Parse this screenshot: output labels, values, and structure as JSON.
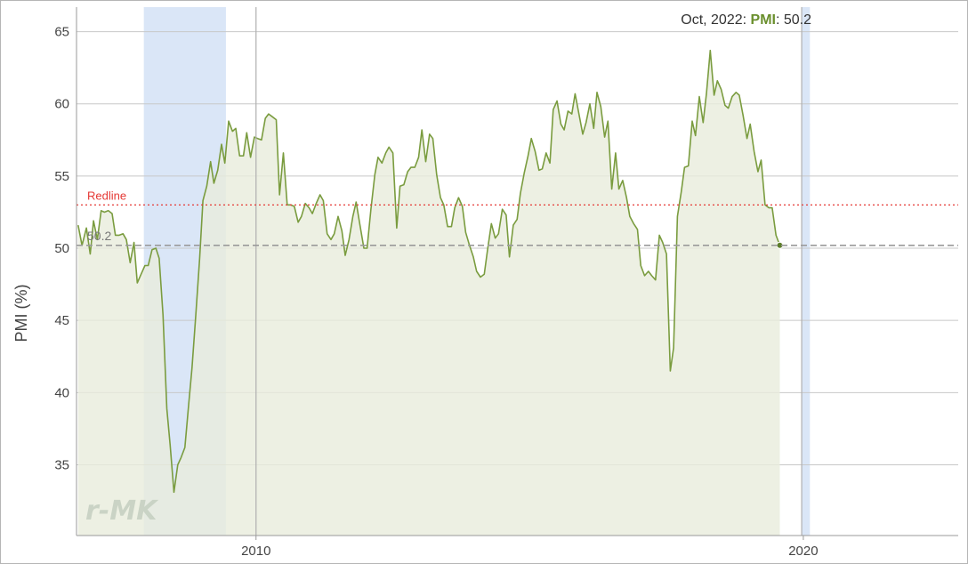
{
  "chart_data": {
    "type": "area",
    "ylabel": "PMI (%)",
    "x_ticks": [
      {
        "year": 2010,
        "label": "2010"
      },
      {
        "year": 2020,
        "label": "2020"
      }
    ],
    "xlim": [
      2006.72,
      2022.83
    ],
    "y_ticks": [
      35,
      40,
      45,
      50,
      55,
      60,
      65
    ],
    "ylim": [
      30.1,
      66.7
    ],
    "grid": true,
    "series": [
      {
        "name": "PMI",
        "color": "#7a9c3f",
        "fill": "#e8ecdc",
        "points": [
          [
            2006.75,
            51.6
          ],
          [
            2006.82,
            50.2
          ],
          [
            2006.9,
            51.4
          ],
          [
            2006.97,
            49.6
          ],
          [
            2007.03,
            51.9
          ],
          [
            2007.1,
            50.6
          ],
          [
            2007.17,
            52.6
          ],
          [
            2007.23,
            52.5
          ],
          [
            2007.3,
            52.6
          ],
          [
            2007.37,
            52.4
          ],
          [
            2007.43,
            50.9
          ],
          [
            2007.5,
            50.9
          ],
          [
            2007.57,
            51.0
          ],
          [
            2007.63,
            50.6
          ],
          [
            2007.7,
            49.0
          ],
          [
            2007.77,
            50.4
          ],
          [
            2007.83,
            47.6
          ],
          [
            2007.9,
            48.2
          ],
          [
            2007.97,
            48.8
          ],
          [
            2008.03,
            48.8
          ],
          [
            2008.1,
            49.9
          ],
          [
            2008.17,
            50.0
          ],
          [
            2008.23,
            49.3
          ],
          [
            2008.3,
            45.4
          ],
          [
            2008.37,
            38.9
          ],
          [
            2008.43,
            36.4
          ],
          [
            2008.5,
            33.1
          ],
          [
            2008.57,
            35.0
          ],
          [
            2008.63,
            35.5
          ],
          [
            2008.7,
            36.2
          ],
          [
            2008.77,
            39.2
          ],
          [
            2008.83,
            41.7
          ],
          [
            2008.9,
            45.4
          ],
          [
            2008.97,
            49.3
          ],
          [
            2009.03,
            53.3
          ],
          [
            2009.1,
            54.3
          ],
          [
            2009.17,
            56.0
          ],
          [
            2009.23,
            54.5
          ],
          [
            2009.3,
            55.4
          ],
          [
            2009.37,
            57.2
          ],
          [
            2009.43,
            55.9
          ],
          [
            2009.5,
            58.8
          ],
          [
            2009.57,
            58.1
          ],
          [
            2009.63,
            58.3
          ],
          [
            2009.7,
            56.4
          ],
          [
            2009.77,
            56.4
          ],
          [
            2009.83,
            58.0
          ],
          [
            2009.9,
            56.3
          ],
          [
            2009.97,
            57.7
          ],
          [
            2010.03,
            57.6
          ],
          [
            2010.1,
            57.5
          ],
          [
            2010.17,
            59.0
          ],
          [
            2010.23,
            59.3
          ],
          [
            2010.3,
            59.1
          ],
          [
            2010.37,
            58.9
          ],
          [
            2010.43,
            53.7
          ],
          [
            2010.5,
            56.6
          ],
          [
            2010.57,
            53.0
          ],
          [
            2010.63,
            53.0
          ],
          [
            2010.7,
            52.9
          ],
          [
            2010.77,
            51.8
          ],
          [
            2010.83,
            52.2
          ],
          [
            2010.9,
            53.1
          ],
          [
            2010.97,
            52.8
          ],
          [
            2011.03,
            52.4
          ],
          [
            2011.1,
            53.1
          ],
          [
            2011.17,
            53.7
          ],
          [
            2011.23,
            53.3
          ],
          [
            2011.3,
            51.0
          ],
          [
            2011.37,
            50.6
          ],
          [
            2011.43,
            51.0
          ],
          [
            2011.5,
            52.2
          ],
          [
            2011.57,
            51.2
          ],
          [
            2011.63,
            49.5
          ],
          [
            2011.7,
            50.6
          ],
          [
            2011.77,
            52.2
          ],
          [
            2011.83,
            53.2
          ],
          [
            2011.9,
            51.6
          ],
          [
            2011.97,
            50.0
          ],
          [
            2012.03,
            50.0
          ],
          [
            2012.1,
            52.7
          ],
          [
            2012.17,
            55.1
          ],
          [
            2012.23,
            56.3
          ],
          [
            2012.3,
            55.9
          ],
          [
            2012.37,
            56.6
          ],
          [
            2012.43,
            57.0
          ],
          [
            2012.5,
            56.6
          ],
          [
            2012.57,
            51.4
          ],
          [
            2012.63,
            54.3
          ],
          [
            2012.7,
            54.4
          ],
          [
            2012.77,
            55.3
          ],
          [
            2012.83,
            55.6
          ],
          [
            2012.9,
            55.6
          ],
          [
            2012.97,
            56.3
          ],
          [
            2013.03,
            58.2
          ],
          [
            2013.1,
            56.0
          ],
          [
            2013.17,
            57.9
          ],
          [
            2013.23,
            57.6
          ],
          [
            2013.3,
            55.1
          ],
          [
            2013.37,
            53.5
          ],
          [
            2013.43,
            53.0
          ],
          [
            2013.5,
            51.5
          ],
          [
            2013.57,
            51.5
          ],
          [
            2013.63,
            52.8
          ],
          [
            2013.7,
            53.5
          ],
          [
            2013.77,
            52.9
          ],
          [
            2013.83,
            51.1
          ],
          [
            2013.9,
            50.2
          ],
          [
            2013.97,
            49.4
          ],
          [
            2014.03,
            48.4
          ],
          [
            2014.1,
            48.0
          ],
          [
            2014.17,
            48.2
          ],
          [
            2014.23,
            49.9
          ],
          [
            2014.3,
            51.7
          ],
          [
            2014.37,
            50.7
          ],
          [
            2014.43,
            51.0
          ],
          [
            2014.5,
            52.7
          ],
          [
            2014.57,
            52.3
          ],
          [
            2014.63,
            49.4
          ],
          [
            2014.7,
            51.6
          ],
          [
            2014.77,
            52.0
          ],
          [
            2014.83,
            53.8
          ],
          [
            2014.9,
            55.2
          ],
          [
            2014.97,
            56.4
          ],
          [
            2015.03,
            57.6
          ],
          [
            2015.1,
            56.7
          ],
          [
            2015.17,
            55.4
          ],
          [
            2015.23,
            55.5
          ],
          [
            2015.3,
            56.6
          ],
          [
            2015.37,
            55.9
          ],
          [
            2015.43,
            59.6
          ],
          [
            2015.5,
            60.2
          ],
          [
            2015.57,
            58.6
          ],
          [
            2015.63,
            58.2
          ],
          [
            2015.7,
            59.5
          ],
          [
            2015.77,
            59.3
          ],
          [
            2015.83,
            60.7
          ],
          [
            2015.9,
            59.3
          ],
          [
            2015.97,
            57.9
          ],
          [
            2016.03,
            58.7
          ],
          [
            2016.1,
            60.0
          ],
          [
            2016.17,
            58.3
          ],
          [
            2016.23,
            60.8
          ],
          [
            2016.3,
            59.8
          ],
          [
            2016.37,
            57.7
          ],
          [
            2016.43,
            58.8
          ],
          [
            2016.5,
            54.1
          ],
          [
            2016.57,
            56.6
          ],
          [
            2016.63,
            54.1
          ],
          [
            2016.7,
            54.7
          ],
          [
            2016.77,
            53.5
          ],
          [
            2016.83,
            52.2
          ],
          [
            2016.9,
            51.7
          ],
          [
            2016.97,
            51.3
          ],
          [
            2017.03,
            48.8
          ],
          [
            2017.1,
            48.1
          ],
          [
            2017.17,
            48.4
          ],
          [
            2017.23,
            48.1
          ],
          [
            2017.3,
            47.8
          ],
          [
            2017.37,
            50.9
          ],
          [
            2017.43,
            50.4
          ],
          [
            2017.5,
            49.6
          ],
          [
            2017.57,
            41.5
          ],
          [
            2017.63,
            43.1
          ],
          [
            2017.7,
            52.2
          ],
          [
            2017.77,
            53.9
          ],
          [
            2017.83,
            55.6
          ],
          [
            2017.9,
            55.7
          ],
          [
            2017.97,
            58.8
          ],
          [
            2018.03,
            57.8
          ],
          [
            2018.1,
            60.5
          ],
          [
            2018.17,
            58.7
          ],
          [
            2018.23,
            60.7
          ],
          [
            2018.3,
            63.7
          ],
          [
            2018.37,
            60.6
          ],
          [
            2018.43,
            61.6
          ],
          [
            2018.5,
            61.0
          ],
          [
            2018.57,
            59.9
          ],
          [
            2018.63,
            59.7
          ],
          [
            2018.7,
            60.5
          ],
          [
            2018.77,
            60.8
          ],
          [
            2018.83,
            60.6
          ],
          [
            2018.9,
            59.2
          ],
          [
            2018.97,
            57.6
          ],
          [
            2019.03,
            58.6
          ],
          [
            2019.1,
            56.7
          ],
          [
            2019.17,
            55.3
          ],
          [
            2019.23,
            56.1
          ],
          [
            2019.3,
            53.0
          ],
          [
            2019.37,
            52.8
          ],
          [
            2019.43,
            52.8
          ],
          [
            2019.5,
            50.9
          ],
          [
            2019.57,
            50.2
          ]
        ]
      }
    ],
    "recessions": [
      [
        2007.95,
        2009.45
      ],
      [
        2019.97,
        2020.12
      ]
    ],
    "vertical_lines": [
      2010,
      2019.97
    ],
    "redline": {
      "value": 53.0,
      "label": "Redline",
      "color": "#e53935"
    },
    "reference": {
      "value": 50.2,
      "label": "50.2"
    },
    "tooltip": {
      "date": "Oct, 2022: ",
      "series": "PMI",
      "value": ": 50.2"
    },
    "watermark": "r-MK"
  }
}
